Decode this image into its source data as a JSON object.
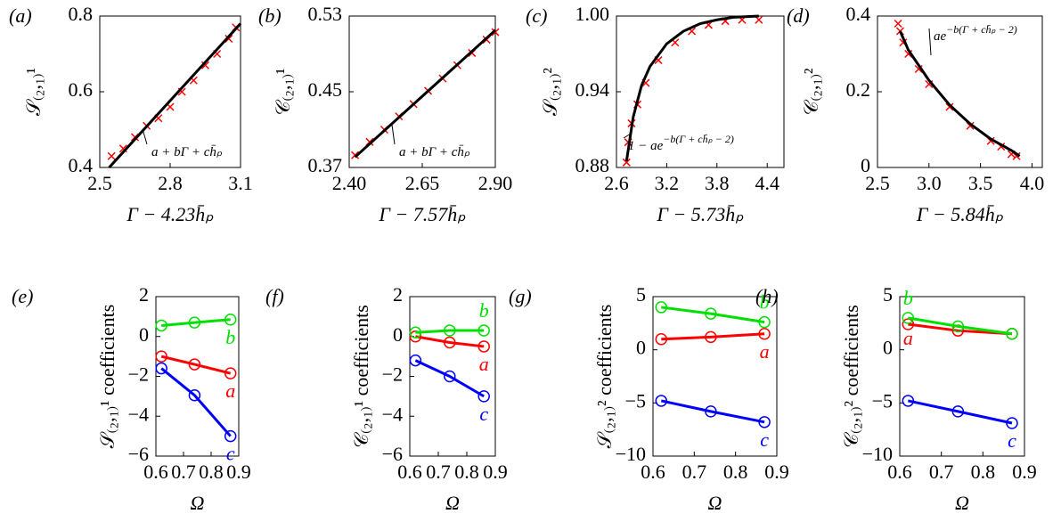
{
  "chart_data": [
    {
      "type": "scatter",
      "panel_label": "(a)",
      "ylabel": "𝒮₍₂,₁₎¹",
      "xlabel": "Γ − 4.23h̄ₚ",
      "annotation": {
        "text": "a + bΓ + ch̄ₚ"
      },
      "xlim": [
        2.5,
        3.1
      ],
      "ylim": [
        0.4,
        0.8
      ],
      "xticks": [
        2.5,
        2.8,
        3.1
      ],
      "yticks": [
        0.4,
        0.6,
        0.8
      ],
      "series": [
        {
          "color": "#ff0000",
          "marker": "x",
          "x": [
            2.55,
            2.6,
            2.65,
            2.7,
            2.75,
            2.8,
            2.85,
            2.9,
            2.95,
            3.0,
            3.05,
            3.08
          ],
          "values": [
            0.43,
            0.45,
            0.48,
            0.51,
            0.53,
            0.56,
            0.6,
            0.63,
            0.67,
            0.7,
            0.74,
            0.77
          ]
        },
        {
          "color": "#000000",
          "marker": "line",
          "x": [
            2.54,
            3.1
          ],
          "values": [
            0.4,
            0.78
          ]
        }
      ]
    },
    {
      "type": "scatter",
      "panel_label": "(b)",
      "ylabel": "𝒞₍₂,₁₎¹",
      "xlabel": "Γ − 7.57h̄ₚ",
      "annotation": {
        "text": "a + bΓ + ch̄ₚ"
      },
      "xlim": [
        2.4,
        2.9
      ],
      "ylim": [
        0.37,
        0.53
      ],
      "xticks": [
        {
          "value": 2.4,
          "label": "2.40"
        },
        2.65,
        {
          "value": 2.9,
          "label": "2.90"
        }
      ],
      "yticks": [
        0.37,
        0.45,
        0.53
      ],
      "series": [
        {
          "color": "#ff0000",
          "marker": "x",
          "x": [
            2.42,
            2.47,
            2.52,
            2.57,
            2.62,
            2.67,
            2.72,
            2.77,
            2.82,
            2.87,
            2.9
          ],
          "values": [
            0.383,
            0.397,
            0.41,
            0.424,
            0.437,
            0.451,
            0.464,
            0.478,
            0.491,
            0.505,
            0.513
          ]
        },
        {
          "color": "#000000",
          "marker": "line",
          "x": [
            2.42,
            2.9
          ],
          "values": [
            0.381,
            0.515
          ]
        }
      ]
    },
    {
      "type": "scatter",
      "panel_label": "(c)",
      "ylabel": "𝒮₍₂,₁₎²",
      "xlabel": "Γ − 5.73h̄ₚ",
      "annotation": {
        "text": "1 − ae",
        "sup": "−b(Γ + ch̄ₚ − 2)"
      },
      "xlim": [
        2.6,
        4.6
      ],
      "ylim": [
        0.88,
        1.0
      ],
      "xticks": [
        2.6,
        3.2,
        3.8,
        4.4
      ],
      "yticks": [
        0.88,
        0.94,
        {
          "value": 1.0,
          "label": "1.00"
        }
      ],
      "series": [
        {
          "color": "#ff0000",
          "marker": "x",
          "x": [
            2.72,
            2.74,
            2.78,
            2.85,
            2.95,
            3.1,
            3.3,
            3.5,
            3.7,
            3.9,
            4.1,
            4.3
          ],
          "values": [
            0.884,
            0.9,
            0.915,
            0.93,
            0.947,
            0.965,
            0.979,
            0.988,
            0.993,
            0.996,
            0.997,
            0.997
          ]
        },
        {
          "color": "#000000",
          "marker": "line",
          "x": [
            2.72,
            2.8,
            2.9,
            3.0,
            3.2,
            3.4,
            3.6,
            3.8,
            4.0,
            4.3
          ],
          "values": [
            0.885,
            0.92,
            0.945,
            0.96,
            0.978,
            0.988,
            0.994,
            0.997,
            0.999,
            1.0
          ]
        }
      ]
    },
    {
      "type": "scatter",
      "panel_label": "(d)",
      "ylabel": "𝒞₍₂,₁₎²",
      "xlabel": "Γ − 5.84h̄ₚ",
      "annotation": {
        "text": "ae",
        "sup": "−b(Γ + ch̄ₚ − 2)"
      },
      "xlim": [
        2.5,
        4.1
      ],
      "ylim": [
        0,
        0.4
      ],
      "xticks": [
        2.5,
        {
          "value": 3.0,
          "label": "3.0"
        },
        3.5,
        {
          "value": 4.0,
          "label": "4.0"
        }
      ],
      "yticks": [
        0,
        0.2,
        0.4
      ],
      "series": [
        {
          "color": "#ff0000",
          "marker": "x",
          "x": [
            2.7,
            2.72,
            2.75,
            2.8,
            2.9,
            3.0,
            3.2,
            3.4,
            3.6,
            3.7,
            3.8,
            3.85
          ],
          "values": [
            0.38,
            0.36,
            0.33,
            0.3,
            0.26,
            0.22,
            0.16,
            0.11,
            0.07,
            0.055,
            0.035,
            0.03
          ]
        },
        {
          "color": "#000000",
          "marker": "line",
          "x": [
            2.72,
            2.8,
            3.0,
            3.2,
            3.4,
            3.6,
            3.8,
            3.88
          ],
          "values": [
            0.36,
            0.31,
            0.23,
            0.165,
            0.115,
            0.075,
            0.045,
            0.03
          ]
        }
      ]
    },
    {
      "type": "line",
      "panel_label": "(e)",
      "ylabel": "𝒮₍₂,₁₎¹ coefficients",
      "xlabel": "Ω",
      "xlim": [
        0.6,
        0.9
      ],
      "ylim": [
        -6,
        2
      ],
      "xticks": [
        0.6,
        0.7,
        0.8,
        0.9
      ],
      "yticks": [
        {
          "value": -6,
          "label": "−6"
        },
        {
          "value": -4,
          "label": "−4"
        },
        {
          "value": -2,
          "label": "−2"
        },
        0,
        2
      ],
      "series": [
        {
          "name": "a",
          "color": "#ff0000",
          "x": [
            0.62,
            0.74,
            0.87
          ],
          "values": [
            -1.0,
            -1.4,
            -1.85
          ]
        },
        {
          "name": "b",
          "color": "#00e000",
          "x": [
            0.62,
            0.74,
            0.87
          ],
          "values": [
            0.55,
            0.7,
            0.85
          ]
        },
        {
          "name": "c",
          "color": "#0000ff",
          "x": [
            0.62,
            0.74,
            0.87
          ],
          "values": [
            -1.6,
            -2.95,
            -5.0
          ]
        }
      ]
    },
    {
      "type": "line",
      "panel_label": "(f)",
      "ylabel": "𝒞₍₂,₁₎¹ coefficients",
      "xlabel": "Ω",
      "xlim": [
        0.6,
        0.9
      ],
      "ylim": [
        -6,
        2
      ],
      "xticks": [
        0.6,
        0.7,
        0.8,
        0.9
      ],
      "yticks": [
        {
          "value": -6,
          "label": "−6"
        },
        {
          "value": -4,
          "label": "−4"
        },
        {
          "value": -2,
          "label": "−2"
        },
        0,
        2
      ],
      "series": [
        {
          "name": "a",
          "color": "#ff0000",
          "x": [
            0.62,
            0.74,
            0.86
          ],
          "values": [
            0.0,
            -0.3,
            -0.5
          ]
        },
        {
          "name": "b",
          "color": "#00e000",
          "x": [
            0.62,
            0.74,
            0.86
          ],
          "values": [
            0.2,
            0.3,
            0.3
          ]
        },
        {
          "name": "c",
          "color": "#0000ff",
          "x": [
            0.62,
            0.74,
            0.86
          ],
          "values": [
            -1.2,
            -2.0,
            -3.0
          ]
        }
      ]
    },
    {
      "type": "line",
      "panel_label": "(g)",
      "ylabel": "𝒮₍₂,₁₎² coefficients",
      "xlabel": "Ω",
      "xlim": [
        0.6,
        0.9
      ],
      "ylim": [
        -10,
        5
      ],
      "xticks": [
        0.6,
        0.7,
        0.8,
        0.9
      ],
      "yticks": [
        {
          "value": -10,
          "label": "−10"
        },
        {
          "value": -5,
          "label": "−5"
        },
        0,
        5
      ],
      "series": [
        {
          "name": "a",
          "color": "#ff0000",
          "x": [
            0.62,
            0.74,
            0.87
          ],
          "values": [
            1.0,
            1.2,
            1.5
          ]
        },
        {
          "name": "b",
          "color": "#00e000",
          "x": [
            0.62,
            0.74,
            0.87
          ],
          "values": [
            4.0,
            3.4,
            2.6
          ]
        },
        {
          "name": "c",
          "color": "#0000ff",
          "x": [
            0.62,
            0.74,
            0.87
          ],
          "values": [
            -4.8,
            -5.8,
            -6.8
          ]
        }
      ]
    },
    {
      "type": "line",
      "panel_label": "(h)",
      "ylabel": "𝒞₍₂,₁₎² coefficients",
      "xlabel": "Ω",
      "xlim": [
        0.6,
        0.9
      ],
      "ylim": [
        -10,
        5
      ],
      "xticks": [
        0.6,
        0.7,
        0.8,
        0.9
      ],
      "yticks": [
        {
          "value": -10,
          "label": "−10"
        },
        {
          "value": -5,
          "label": "−5"
        },
        0,
        5
      ],
      "series": [
        {
          "name": "a",
          "color": "#ff0000",
          "x": [
            0.62,
            0.74,
            0.87
          ],
          "values": [
            2.4,
            1.8,
            1.5
          ]
        },
        {
          "name": "b",
          "color": "#00e000",
          "x": [
            0.62,
            0.74,
            0.87
          ],
          "values": [
            3.0,
            2.2,
            1.5
          ]
        },
        {
          "name": "c",
          "color": "#0000ff",
          "x": [
            0.62,
            0.74,
            0.87
          ],
          "values": [
            -4.8,
            -5.8,
            -6.9
          ]
        }
      ]
    }
  ]
}
